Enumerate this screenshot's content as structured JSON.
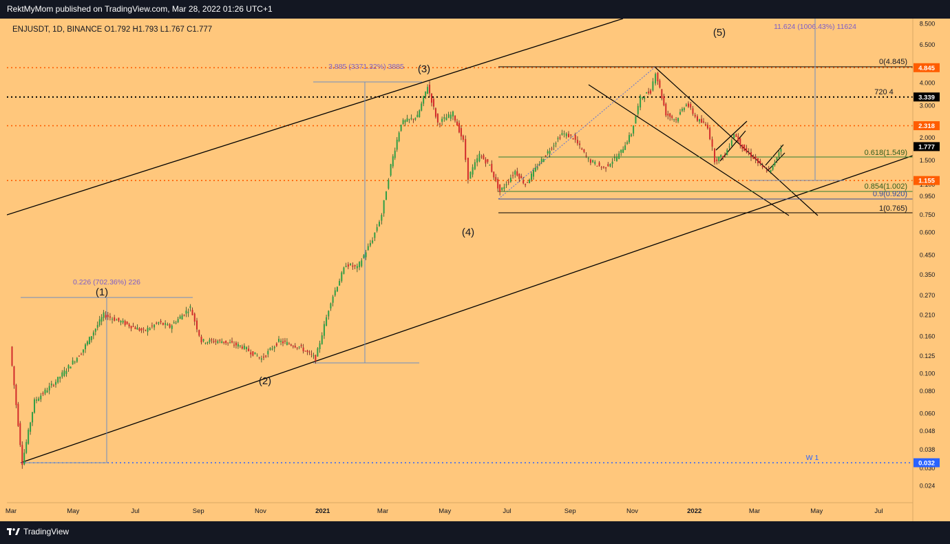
{
  "header": {
    "publish_line": "RektMyMom published on TradingView.com, Mar 28, 2022 01:26 UTC+1"
  },
  "footer": {
    "brand": "TradingView",
    "logo_icon": "tradingview-logo-icon"
  },
  "colors": {
    "background": "#ffc77c",
    "frame": "#131722",
    "red_level": "#ff5d00",
    "blue": "#2962ff"
  },
  "chart_data": {
    "type": "candlestick",
    "symbol_line": "ENJUSDT, 1D, BINANCE  O1.792  H1.793  L1.767  C1.777",
    "y_scale": "log",
    "y_ticks": [
      "8.500",
      "6.500",
      "4.000",
      "3.000",
      "2.000",
      "1.500",
      "1.100",
      "0.950",
      "0.750",
      "0.600",
      "0.450",
      "0.350",
      "0.270",
      "0.210",
      "0.160",
      "0.125",
      "0.100",
      "0.080",
      "0.060",
      "0.048",
      "0.038",
      "0.030",
      "0.024"
    ],
    "x_ticks": [
      "Mar",
      "May",
      "Jul",
      "Sep",
      "Nov",
      "2021",
      "Mar",
      "May",
      "Jul",
      "Sep",
      "Nov",
      "2022",
      "Mar",
      "May",
      "Jul"
    ],
    "price_badges": [
      {
        "label": "4.845",
        "value": 4.845,
        "color": "#ff5d00"
      },
      {
        "label": "3.339",
        "value": 3.339,
        "color": "#000000"
      },
      {
        "label": "2.318",
        "value": 2.318,
        "color": "#ff5d00"
      },
      {
        "label": "1.777",
        "value": 1.777,
        "color": "#000000"
      },
      {
        "label": "1.155",
        "value": 1.155,
        "color": "#ff5d00"
      },
      {
        "label": "0.032",
        "value": 0.032,
        "color": "#2962ff"
      }
    ],
    "wave_labels": [
      "(1)",
      "(2)",
      "(3)",
      "(4)",
      "(5)"
    ],
    "fib_labels": [
      "0(4.845)",
      "720 4",
      "0.618(1.549)",
      "0.854(1.002)",
      "0.9(0.920)",
      "1(0.765)"
    ],
    "measure_labels": [
      "0.226 (702.36%) 226",
      "3.885 (3371.32%) 3885",
      "11.624 (1006.43%) 11624"
    ],
    "level_label": "W 1",
    "price_path": [
      [
        "2020-03-01",
        0.14
      ],
      [
        "2020-03-13",
        0.032
      ],
      [
        "2020-03-25",
        0.07
      ],
      [
        "2020-04-15",
        0.09
      ],
      [
        "2020-05-10",
        0.13
      ],
      [
        "2020-06-01",
        0.21
      ],
      [
        "2020-06-20",
        0.19
      ],
      [
        "2020-07-10",
        0.17
      ],
      [
        "2020-07-25",
        0.19
      ],
      [
        "2020-08-05",
        0.18
      ],
      [
        "2020-08-25",
        0.23
      ],
      [
        "2020-09-05",
        0.15
      ],
      [
        "2020-09-25",
        0.15
      ],
      [
        "2020-10-15",
        0.14
      ],
      [
        "2020-11-03",
        0.12
      ],
      [
        "2020-11-20",
        0.15
      ],
      [
        "2020-12-10",
        0.14
      ],
      [
        "2020-12-26",
        0.12
      ],
      [
        "2021-01-10",
        0.25
      ],
      [
        "2021-01-25",
        0.4
      ],
      [
        "2021-02-05",
        0.38
      ],
      [
        "2021-02-20",
        0.55
      ],
      [
        "2021-03-01",
        0.75
      ],
      [
        "2021-03-10",
        1.4
      ],
      [
        "2021-03-20",
        2.4
      ],
      [
        "2021-04-05",
        2.6
      ],
      [
        "2021-04-15",
        3.85
      ],
      [
        "2021-04-25",
        2.4
      ],
      [
        "2021-05-10",
        2.7
      ],
      [
        "2021-05-20",
        1.9
      ],
      [
        "2021-05-25",
        1.2
      ],
      [
        "2021-06-05",
        1.6
      ],
      [
        "2021-06-15",
        1.4
      ],
      [
        "2021-06-25",
        1.0
      ],
      [
        "2021-07-10",
        1.3
      ],
      [
        "2021-07-20",
        1.1
      ],
      [
        "2021-08-05",
        1.5
      ],
      [
        "2021-08-25",
        2.1
      ],
      [
        "2021-09-05",
        2.0
      ],
      [
        "2021-09-20",
        1.5
      ],
      [
        "2021-10-05",
        1.35
      ],
      [
        "2021-10-20",
        1.6
      ],
      [
        "2021-11-01",
        2.1
      ],
      [
        "2021-11-10",
        3.3
      ],
      [
        "2021-11-20",
        3.6
      ],
      [
        "2021-11-25",
        4.6
      ],
      [
        "2021-12-05",
        2.7
      ],
      [
        "2021-12-15",
        2.5
      ],
      [
        "2021-12-25",
        3.1
      ],
      [
        "2022-01-05",
        2.5
      ],
      [
        "2022-01-15",
        2.3
      ],
      [
        "2022-01-22",
        1.5
      ],
      [
        "2022-02-01",
        1.6
      ],
      [
        "2022-02-10",
        2.1
      ],
      [
        "2022-02-20",
        1.7
      ],
      [
        "2022-03-01",
        1.55
      ],
      [
        "2022-03-10",
        1.35
      ],
      [
        "2022-03-18",
        1.3
      ],
      [
        "2022-03-28",
        1.777
      ]
    ]
  }
}
